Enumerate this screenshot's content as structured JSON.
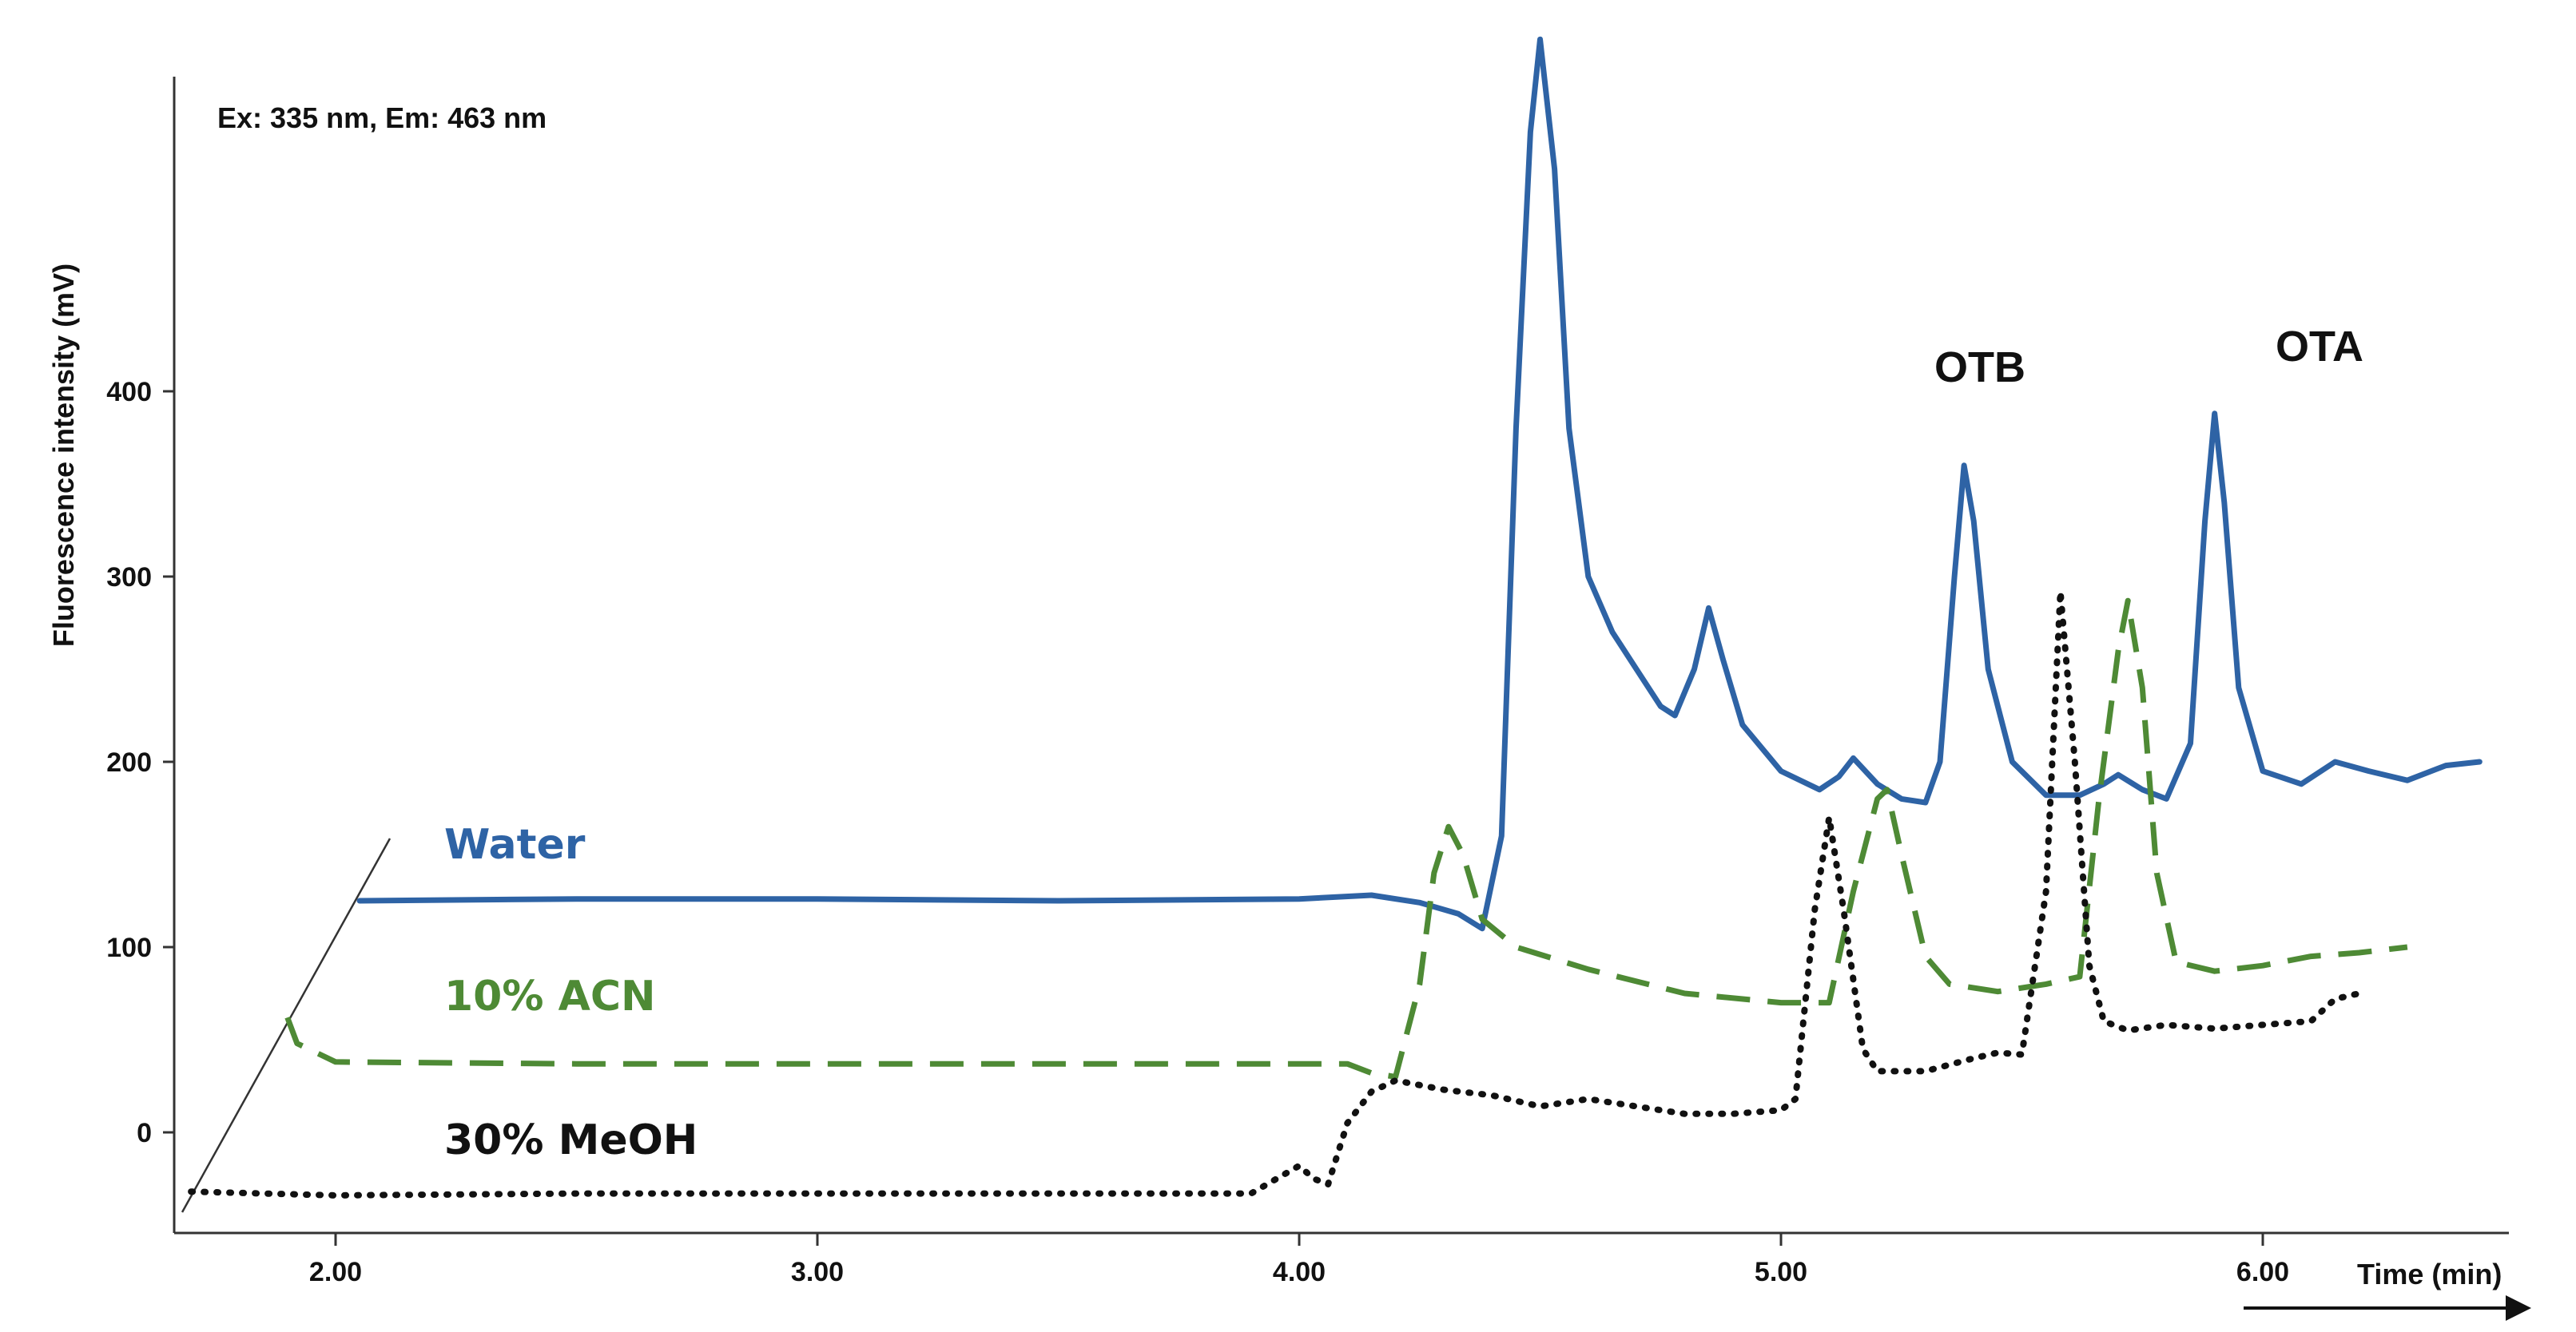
{
  "chart_data": {
    "type": "line",
    "title": "",
    "annotation": "Ex: 335 nm, Em: 463 nm",
    "xlabel": "Time (min)",
    "ylabel": "Fluorescence intensity (mV)",
    "x_ticks": [
      "2.00",
      "3.00",
      "4.00",
      "5.00",
      "6.00"
    ],
    "y_ticks": [
      "0",
      "100",
      "200",
      "300",
      "400"
    ],
    "xlim": [
      1.68,
      6.45
    ],
    "ylim": [
      -50,
      590
    ],
    "layout": "stacked with diagonal offset (3D waterfall style)",
    "peak_labels": [
      {
        "text": "OTB",
        "x": 5.38
      },
      {
        "text": "OTA",
        "x": 5.9
      }
    ],
    "series": [
      {
        "name": "Water",
        "color": "#2e63a5",
        "style": "solid",
        "points": [
          [
            2.05,
            125
          ],
          [
            2.5,
            126
          ],
          [
            3.0,
            126
          ],
          [
            3.5,
            125
          ],
          [
            4.0,
            126
          ],
          [
            4.15,
            128
          ],
          [
            4.25,
            124
          ],
          [
            4.33,
            118
          ],
          [
            4.38,
            110
          ],
          [
            4.42,
            160
          ],
          [
            4.45,
            380
          ],
          [
            4.48,
            540
          ],
          [
            4.5,
            590
          ],
          [
            4.53,
            520
          ],
          [
            4.56,
            380
          ],
          [
            4.6,
            300
          ],
          [
            4.65,
            270
          ],
          [
            4.7,
            250
          ],
          [
            4.75,
            230
          ],
          [
            4.78,
            225
          ],
          [
            4.82,
            250
          ],
          [
            4.85,
            283
          ],
          [
            4.88,
            255
          ],
          [
            4.92,
            220
          ],
          [
            5.0,
            195
          ],
          [
            5.08,
            185
          ],
          [
            5.12,
            192
          ],
          [
            5.15,
            202
          ],
          [
            5.2,
            188
          ],
          [
            5.25,
            180
          ],
          [
            5.3,
            178
          ],
          [
            5.33,
            200
          ],
          [
            5.36,
            300
          ],
          [
            5.38,
            360
          ],
          [
            5.4,
            330
          ],
          [
            5.43,
            250
          ],
          [
            5.48,
            200
          ],
          [
            5.55,
            182
          ],
          [
            5.62,
            182
          ],
          [
            5.67,
            188
          ],
          [
            5.7,
            193
          ],
          [
            5.75,
            185
          ],
          [
            5.8,
            180
          ],
          [
            5.85,
            210
          ],
          [
            5.88,
            330
          ],
          [
            5.9,
            388
          ],
          [
            5.92,
            340
          ],
          [
            5.95,
            240
          ],
          [
            6.0,
            195
          ],
          [
            6.08,
            188
          ],
          [
            6.15,
            200
          ],
          [
            6.22,
            195
          ],
          [
            6.3,
            190
          ],
          [
            6.38,
            198
          ],
          [
            6.45,
            200
          ]
        ]
      },
      {
        "name": "10% ACN",
        "color": "#4e8a35",
        "style": "dashed",
        "points": [
          [
            1.9,
            62
          ],
          [
            1.92,
            48
          ],
          [
            2.0,
            38
          ],
          [
            2.5,
            37
          ],
          [
            3.0,
            37
          ],
          [
            3.5,
            37
          ],
          [
            4.0,
            37
          ],
          [
            4.1,
            37
          ],
          [
            4.15,
            32
          ],
          [
            4.2,
            30
          ],
          [
            4.25,
            80
          ],
          [
            4.28,
            140
          ],
          [
            4.31,
            165
          ],
          [
            4.34,
            150
          ],
          [
            4.38,
            115
          ],
          [
            4.45,
            100
          ],
          [
            4.6,
            88
          ],
          [
            4.8,
            75
          ],
          [
            5.0,
            70
          ],
          [
            5.1,
            70
          ],
          [
            5.15,
            130
          ],
          [
            5.2,
            180
          ],
          [
            5.22,
            185
          ],
          [
            5.25,
            150
          ],
          [
            5.3,
            95
          ],
          [
            5.35,
            80
          ],
          [
            5.45,
            76
          ],
          [
            5.55,
            80
          ],
          [
            5.62,
            84
          ],
          [
            5.66,
            180
          ],
          [
            5.7,
            260
          ],
          [
            5.72,
            287
          ],
          [
            5.75,
            240
          ],
          [
            5.78,
            140
          ],
          [
            5.82,
            92
          ],
          [
            5.9,
            87
          ],
          [
            6.0,
            90
          ],
          [
            6.1,
            95
          ],
          [
            6.2,
            97
          ],
          [
            6.3,
            100
          ]
        ]
      },
      {
        "name": "30% MeOH",
        "color": "#111111",
        "style": "dotted",
        "points": [
          [
            1.7,
            -32
          ],
          [
            2.0,
            -34
          ],
          [
            2.5,
            -33
          ],
          [
            3.0,
            -33
          ],
          [
            3.5,
            -33
          ],
          [
            3.9,
            -33
          ],
          [
            4.0,
            -18
          ],
          [
            4.03,
            -25
          ],
          [
            4.06,
            -28
          ],
          [
            4.1,
            5
          ],
          [
            4.15,
            22
          ],
          [
            4.2,
            28
          ],
          [
            4.3,
            23
          ],
          [
            4.4,
            20
          ],
          [
            4.5,
            14
          ],
          [
            4.6,
            18
          ],
          [
            4.7,
            14
          ],
          [
            4.8,
            10
          ],
          [
            4.9,
            10
          ],
          [
            5.0,
            12
          ],
          [
            5.03,
            18
          ],
          [
            5.07,
            120
          ],
          [
            5.1,
            170
          ],
          [
            5.13,
            120
          ],
          [
            5.17,
            45
          ],
          [
            5.2,
            33
          ],
          [
            5.3,
            33
          ],
          [
            5.4,
            40
          ],
          [
            5.45,
            43
          ],
          [
            5.5,
            42
          ],
          [
            5.55,
            130
          ],
          [
            5.58,
            292
          ],
          [
            5.61,
            200
          ],
          [
            5.64,
            90
          ],
          [
            5.67,
            60
          ],
          [
            5.72,
            55
          ],
          [
            5.8,
            58
          ],
          [
            5.9,
            56
          ],
          [
            6.0,
            58
          ],
          [
            6.1,
            60
          ],
          [
            6.15,
            72
          ],
          [
            6.2,
            75
          ]
        ]
      }
    ]
  }
}
